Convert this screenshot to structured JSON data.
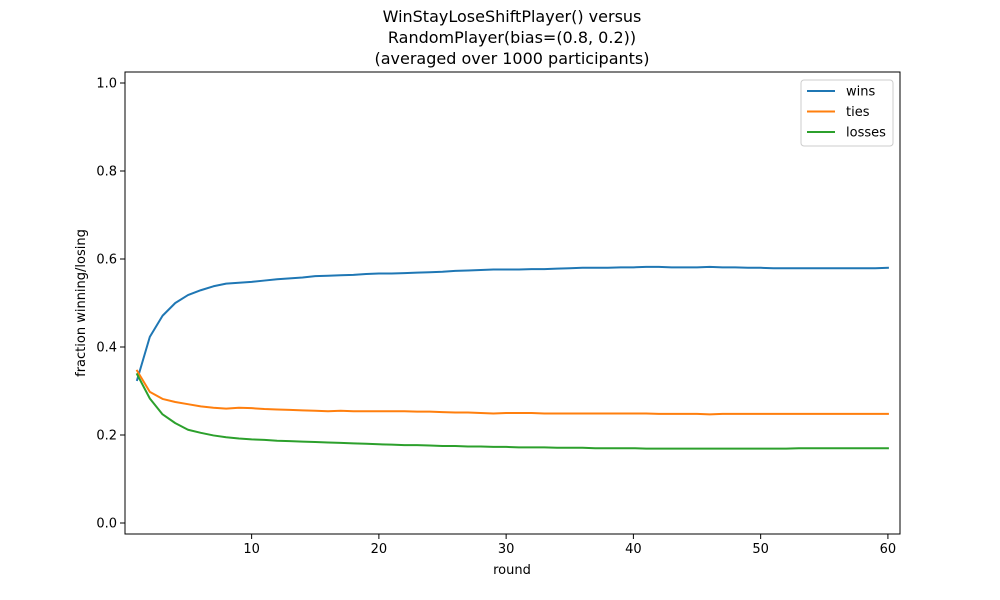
{
  "chart_data": {
    "type": "line",
    "title_lines": [
      "WinStayLoseShiftPlayer() versus",
      "RandomPlayer(bias=(0.8, 0.2))",
      "(averaged over 1000 participants)"
    ],
    "xlabel": "round",
    "ylabel": "fraction winning/losing",
    "xlim": [
      0.05,
      60.95
    ],
    "ylim": [
      -0.025,
      1.025
    ],
    "xticks": [
      10,
      20,
      30,
      40,
      50,
      60
    ],
    "xtick_labels": [
      "10",
      "20",
      "30",
      "40",
      "50",
      "60"
    ],
    "yticks": [
      0.0,
      0.2,
      0.4,
      0.6,
      0.8,
      1.0
    ],
    "ytick_labels": [
      "0.0",
      "0.2",
      "0.4",
      "0.6",
      "0.8",
      "1.0"
    ],
    "grid": false,
    "legend_position": "top-right",
    "x": [
      1,
      2,
      3,
      4,
      5,
      6,
      7,
      8,
      9,
      10,
      11,
      12,
      13,
      14,
      15,
      16,
      17,
      18,
      19,
      20,
      21,
      22,
      23,
      24,
      25,
      26,
      27,
      28,
      29,
      30,
      31,
      32,
      33,
      34,
      35,
      36,
      37,
      38,
      39,
      40,
      41,
      42,
      43,
      44,
      45,
      46,
      47,
      48,
      49,
      50,
      51,
      52,
      53,
      54,
      55,
      56,
      57,
      58,
      59,
      60
    ],
    "series": [
      {
        "name": "wins",
        "color": "#1f77b4",
        "values": [
          0.325,
          0.423,
          0.471,
          0.5,
          0.518,
          0.529,
          0.538,
          0.544,
          0.546,
          0.548,
          0.551,
          0.554,
          0.556,
          0.558,
          0.561,
          0.562,
          0.563,
          0.564,
          0.566,
          0.567,
          0.567,
          0.568,
          0.569,
          0.57,
          0.571,
          0.573,
          0.574,
          0.575,
          0.576,
          0.576,
          0.576,
          0.577,
          0.577,
          0.578,
          0.579,
          0.58,
          0.58,
          0.58,
          0.581,
          0.581,
          0.582,
          0.582,
          0.581,
          0.581,
          0.581,
          0.582,
          0.581,
          0.581,
          0.58,
          0.58,
          0.579,
          0.579,
          0.579,
          0.579,
          0.579,
          0.579,
          0.579,
          0.579,
          0.579,
          0.58
        ]
      },
      {
        "name": "ties",
        "color": "#ff7f0e",
        "values": [
          0.346,
          0.298,
          0.282,
          0.275,
          0.27,
          0.265,
          0.262,
          0.26,
          0.262,
          0.261,
          0.259,
          0.258,
          0.257,
          0.256,
          0.255,
          0.254,
          0.255,
          0.254,
          0.254,
          0.254,
          0.254,
          0.254,
          0.253,
          0.253,
          0.252,
          0.251,
          0.251,
          0.25,
          0.249,
          0.25,
          0.25,
          0.25,
          0.249,
          0.249,
          0.249,
          0.249,
          0.249,
          0.249,
          0.249,
          0.249,
          0.249,
          0.248,
          0.248,
          0.248,
          0.248,
          0.247,
          0.248,
          0.248,
          0.248,
          0.248,
          0.248,
          0.248,
          0.248,
          0.248,
          0.248,
          0.248,
          0.248,
          0.248,
          0.248,
          0.248
        ]
      },
      {
        "name": "losses",
        "color": "#2ca02c",
        "values": [
          0.338,
          0.283,
          0.247,
          0.227,
          0.212,
          0.205,
          0.199,
          0.195,
          0.192,
          0.19,
          0.189,
          0.187,
          0.186,
          0.185,
          0.184,
          0.183,
          0.182,
          0.181,
          0.18,
          0.179,
          0.178,
          0.177,
          0.177,
          0.176,
          0.175,
          0.175,
          0.174,
          0.174,
          0.173,
          0.173,
          0.172,
          0.172,
          0.172,
          0.171,
          0.171,
          0.171,
          0.17,
          0.17,
          0.17,
          0.17,
          0.169,
          0.169,
          0.169,
          0.169,
          0.169,
          0.169,
          0.169,
          0.169,
          0.169,
          0.169,
          0.169,
          0.169,
          0.17,
          0.17,
          0.17,
          0.17,
          0.17,
          0.17,
          0.17,
          0.17
        ]
      }
    ]
  }
}
